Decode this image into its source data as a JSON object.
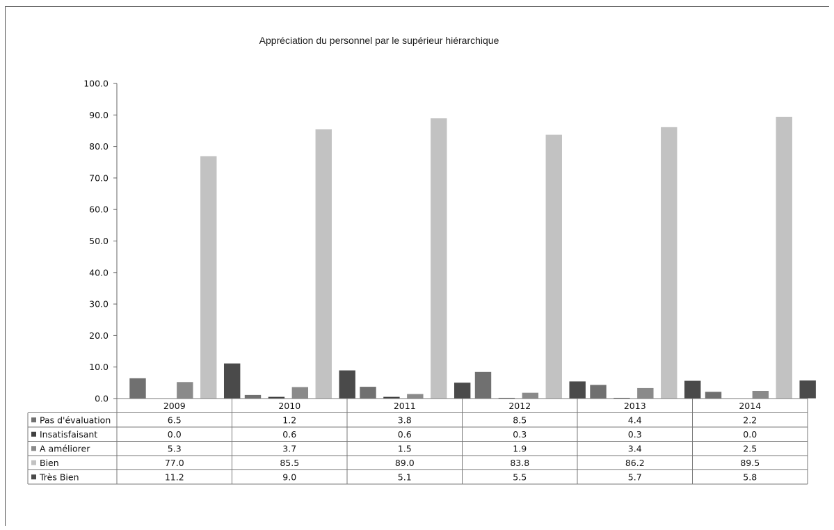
{
  "chart_data": {
    "type": "bar",
    "title": "Appréciation du personnel par le supérieur hiérarchique",
    "categories": [
      "2009",
      "2010",
      "2011",
      "2012",
      "2013",
      "2014"
    ],
    "series": [
      {
        "name": "Pas d'évaluation",
        "values": [
          6.5,
          1.2,
          3.8,
          8.5,
          4.4,
          2.2
        ],
        "labels": [
          "6.5",
          "1.2",
          "3.8",
          "8.5",
          "4.4",
          "2.2"
        ],
        "color": "#707070"
      },
      {
        "name": "Insatisfaisant",
        "values": [
          0.0,
          0.6,
          0.6,
          0.3,
          0.3,
          0.0
        ],
        "labels": [
          "0.0",
          "0.6",
          "0.6",
          "0.3",
          "0.3",
          "0.0"
        ],
        "color": "#404040"
      },
      {
        "name": "A améliorer",
        "values": [
          5.3,
          3.7,
          1.5,
          1.9,
          3.4,
          2.5
        ],
        "labels": [
          "5.3",
          "3.7",
          "1.5",
          "1.9",
          "3.4",
          "2.5"
        ],
        "color": "#8a8a8a"
      },
      {
        "name": "Bien",
        "values": [
          77.0,
          85.5,
          89.0,
          83.8,
          86.2,
          89.5
        ],
        "labels": [
          "77.0",
          "85.5",
          "89.0",
          "83.8",
          "86.2",
          "89.5"
        ],
        "color": "#c2c2c2"
      },
      {
        "name": "Très Bien",
        "values": [
          11.2,
          9.0,
          5.1,
          5.5,
          5.7,
          5.8
        ],
        "labels": [
          "11.2",
          "9.0",
          "5.1",
          "5.5",
          "5.7",
          "5.8"
        ],
        "color": "#4a4a4a"
      }
    ],
    "y_ticks": [
      "0.0",
      "10.0",
      "20.0",
      "30.0",
      "40.0",
      "50.0",
      "60.0",
      "70.0",
      "80.0",
      "90.0",
      "100.0"
    ],
    "ylim": [
      0,
      100
    ],
    "grid": false,
    "legend": "data-table"
  }
}
